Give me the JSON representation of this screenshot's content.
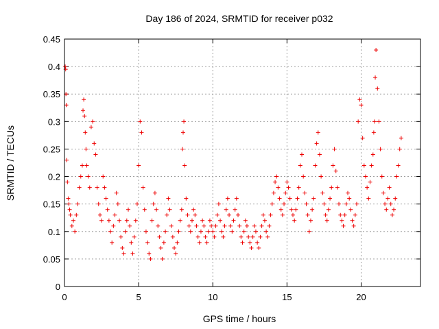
{
  "chart_data": {
    "type": "scatter",
    "title": "Day 186 of 2024, SRMTID for receiver p032",
    "xlabel": "GPS time / hours",
    "ylabel": "SRMTID / TECUs",
    "xlim": [
      0,
      24
    ],
    "ylim": [
      0,
      0.45
    ],
    "x_ticks": [
      0,
      5,
      10,
      15,
      20
    ],
    "x_tick_labels": [
      "0",
      "5",
      "10",
      "15",
      "20"
    ],
    "y_ticks": [
      0,
      0.05,
      0.1,
      0.15,
      0.2,
      0.25,
      0.3,
      0.35,
      0.4,
      0.45
    ],
    "y_tick_labels": [
      "0",
      "0.05",
      "0.1",
      "0.15",
      "0.2",
      "0.25",
      "0.3",
      "0.35",
      "0.4",
      "0.45"
    ],
    "grid": true,
    "marker": "plus",
    "color": "#ee0000",
    "series": [
      {
        "name": "SRMTID",
        "x": [
          0.05,
          0.08,
          0.1,
          0.12,
          0.15,
          0.2,
          0.25,
          0.3,
          0.35,
          0.4,
          0.5,
          0.6,
          0.7,
          0.8,
          0.9,
          1.0,
          1.1,
          1.2,
          1.25,
          1.3,
          1.35,
          1.4,
          1.45,
          1.5,
          1.6,
          1.7,
          1.8,
          1.9,
          2.0,
          2.1,
          2.2,
          2.3,
          2.4,
          2.5,
          2.6,
          2.7,
          2.8,
          2.9,
          3.0,
          3.1,
          3.2,
          3.3,
          3.4,
          3.5,
          3.6,
          3.7,
          3.8,
          3.9,
          4.0,
          4.1,
          4.2,
          4.3,
          4.4,
          4.5,
          4.6,
          4.7,
          4.8,
          4.9,
          5.0,
          5.1,
          5.2,
          5.3,
          5.4,
          5.5,
          5.6,
          5.7,
          5.8,
          5.9,
          6.0,
          6.1,
          6.2,
          6.3,
          6.4,
          6.5,
          6.6,
          6.7,
          6.8,
          6.9,
          7.0,
          7.1,
          7.2,
          7.3,
          7.4,
          7.5,
          7.6,
          7.7,
          7.8,
          7.9,
          7.95,
          8.0,
          8.05,
          8.1,
          8.2,
          8.3,
          8.4,
          8.5,
          8.6,
          8.7,
          8.8,
          8.9,
          9.0,
          9.1,
          9.2,
          9.3,
          9.4,
          9.5,
          9.6,
          9.7,
          9.8,
          9.9,
          10.0,
          10.1,
          10.2,
          10.3,
          10.4,
          10.5,
          10.6,
          10.7,
          10.8,
          10.9,
          11.0,
          11.1,
          11.2,
          11.3,
          11.4,
          11.5,
          11.6,
          11.7,
          11.8,
          11.9,
          12.0,
          12.1,
          12.2,
          12.3,
          12.4,
          12.5,
          12.6,
          12.7,
          12.8,
          12.9,
          13.0,
          13.1,
          13.2,
          13.3,
          13.4,
          13.5,
          13.6,
          13.7,
          13.8,
          13.9,
          14.0,
          14.1,
          14.2,
          14.3,
          14.4,
          14.5,
          14.6,
          14.7,
          14.8,
          14.9,
          15.0,
          15.1,
          15.2,
          15.3,
          15.4,
          15.5,
          15.6,
          15.7,
          15.8,
          15.9,
          16.0,
          16.1,
          16.2,
          16.3,
          16.4,
          16.5,
          16.6,
          16.7,
          16.8,
          16.9,
          17.0,
          17.1,
          17.2,
          17.3,
          17.4,
          17.5,
          17.6,
          17.7,
          17.8,
          17.9,
          18.0,
          18.1,
          18.2,
          18.3,
          18.4,
          18.5,
          18.6,
          18.7,
          18.8,
          18.9,
          19.0,
          19.1,
          19.2,
          19.3,
          19.4,
          19.5,
          19.6,
          19.7,
          19.8,
          19.9,
          20.0,
          20.1,
          20.2,
          20.3,
          20.4,
          20.5,
          20.6,
          20.7,
          20.8,
          20.85,
          20.9,
          20.95,
          21.0,
          21.1,
          21.2,
          21.3,
          21.4,
          21.5,
          21.6,
          21.7,
          21.8,
          21.9,
          22.0,
          22.1,
          22.2,
          22.3,
          22.4,
          22.5,
          22.6,
          22.7
        ],
        "y": [
          0.4,
          0.395,
          0.35,
          0.33,
          0.23,
          0.19,
          0.16,
          0.15,
          0.14,
          0.13,
          0.11,
          0.12,
          0.1,
          0.13,
          0.15,
          0.18,
          0.2,
          0.22,
          0.32,
          0.34,
          0.31,
          0.28,
          0.25,
          0.22,
          0.2,
          0.18,
          0.29,
          0.3,
          0.26,
          0.24,
          0.18,
          0.15,
          0.13,
          0.12,
          0.2,
          0.18,
          0.16,
          0.14,
          0.12,
          0.1,
          0.08,
          0.11,
          0.13,
          0.17,
          0.15,
          0.12,
          0.09,
          0.07,
          0.06,
          0.1,
          0.12,
          0.14,
          0.11,
          0.08,
          0.06,
          0.09,
          0.12,
          0.15,
          0.22,
          0.3,
          0.28,
          0.18,
          0.14,
          0.1,
          0.08,
          0.06,
          0.05,
          0.12,
          0.15,
          0.17,
          0.14,
          0.11,
          0.09,
          0.07,
          0.05,
          0.08,
          0.1,
          0.13,
          0.16,
          0.14,
          0.11,
          0.09,
          0.07,
          0.06,
          0.08,
          0.1,
          0.12,
          0.14,
          0.25,
          0.28,
          0.3,
          0.22,
          0.16,
          0.13,
          0.11,
          0.1,
          0.12,
          0.14,
          0.13,
          0.11,
          0.09,
          0.08,
          0.1,
          0.12,
          0.11,
          0.09,
          0.08,
          0.1,
          0.12,
          0.11,
          0.1,
          0.09,
          0.11,
          0.13,
          0.15,
          0.12,
          0.1,
          0.09,
          0.11,
          0.14,
          0.16,
          0.13,
          0.11,
          0.1,
          0.12,
          0.14,
          0.16,
          0.13,
          0.11,
          0.09,
          0.08,
          0.1,
          0.12,
          0.11,
          0.09,
          0.08,
          0.07,
          0.09,
          0.11,
          0.1,
          0.08,
          0.07,
          0.09,
          0.11,
          0.13,
          0.12,
          0.1,
          0.09,
          0.11,
          0.13,
          0.15,
          0.17,
          0.19,
          0.2,
          0.18,
          0.16,
          0.14,
          0.13,
          0.15,
          0.17,
          0.19,
          0.18,
          0.16,
          0.14,
          0.13,
          0.12,
          0.14,
          0.16,
          0.18,
          0.22,
          0.24,
          0.2,
          0.17,
          0.15,
          0.13,
          0.1,
          0.12,
          0.14,
          0.16,
          0.22,
          0.26,
          0.28,
          0.24,
          0.2,
          0.17,
          0.15,
          0.13,
          0.12,
          0.14,
          0.16,
          0.18,
          0.22,
          0.25,
          0.21,
          0.18,
          0.15,
          0.13,
          0.12,
          0.11,
          0.13,
          0.15,
          0.17,
          0.16,
          0.14,
          0.12,
          0.11,
          0.13,
          0.15,
          0.3,
          0.34,
          0.33,
          0.27,
          0.22,
          0.2,
          0.18,
          0.16,
          0.19,
          0.22,
          0.24,
          0.28,
          0.3,
          0.38,
          0.43,
          0.36,
          0.3,
          0.25,
          0.2,
          0.17,
          0.15,
          0.14,
          0.16,
          0.18,
          0.15,
          0.13,
          0.14,
          0.16,
          0.2,
          0.22,
          0.25,
          0.27
        ]
      }
    ]
  }
}
